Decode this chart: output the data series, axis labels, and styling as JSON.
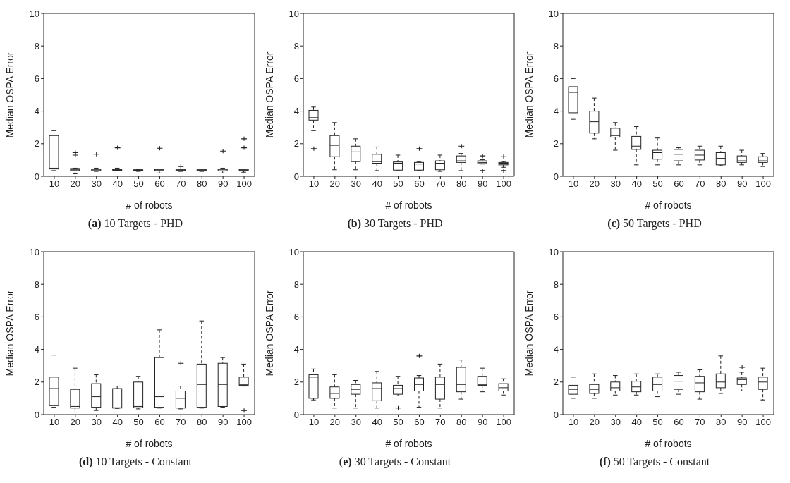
{
  "chart_data": [
    {
      "type": "box",
      "title": "(a) 10 Targets - PHD",
      "xlabel": "# of robots",
      "ylabel": "Median OSPA Error",
      "color": "#222222",
      "line_style": "dashed",
      "marker": "cross",
      "categories": [
        "10",
        "20",
        "30",
        "40",
        "50",
        "60",
        "70",
        "80",
        "90",
        "100"
      ],
      "ylim": [
        0,
        10
      ],
      "yticks": [
        0,
        2,
        4,
        6,
        8,
        10
      ],
      "boxes": [
        {
          "low": 0.35,
          "q1": 0.45,
          "median": 0.5,
          "q3": 2.5,
          "high": 2.8
        },
        {
          "low": 0.15,
          "q1": 0.35,
          "median": 0.4,
          "q3": 0.48,
          "high": 0.5,
          "outliers": [
            1.3,
            1.45
          ]
        },
        {
          "low": 0.3,
          "q1": 0.35,
          "median": 0.4,
          "q3": 0.45,
          "high": 0.5,
          "outliers": [
            1.35
          ]
        },
        {
          "low": 0.35,
          "q1": 0.37,
          "median": 0.4,
          "q3": 0.43,
          "high": 0.5,
          "outliers": [
            1.75
          ]
        },
        {
          "low": 0.3,
          "q1": 0.35,
          "median": 0.38,
          "q3": 0.4,
          "high": 0.42
        },
        {
          "low": 0.2,
          "q1": 0.33,
          "median": 0.38,
          "q3": 0.42,
          "high": 0.45,
          "outliers": [
            1.72
          ]
        },
        {
          "low": 0.3,
          "q1": 0.35,
          "median": 0.38,
          "q3": 0.42,
          "high": 0.44,
          "outliers": [
            0.6
          ]
        },
        {
          "low": 0.3,
          "q1": 0.35,
          "median": 0.38,
          "q3": 0.42,
          "high": 0.45
        },
        {
          "low": 0.2,
          "q1": 0.33,
          "median": 0.4,
          "q3": 0.45,
          "high": 0.5,
          "outliers": [
            1.55
          ]
        },
        {
          "low": 0.25,
          "q1": 0.35,
          "median": 0.38,
          "q3": 0.42,
          "high": 0.45,
          "outliers": [
            1.75,
            2.3
          ]
        }
      ]
    },
    {
      "type": "box",
      "title": "(b) 30 Targets - PHD",
      "xlabel": "# of robots",
      "ylabel": "Median OSPA Error",
      "color": "#222222",
      "line_style": "dashed",
      "marker": "cross",
      "categories": [
        "10",
        "20",
        "30",
        "40",
        "50",
        "60",
        "70",
        "80",
        "90",
        "100"
      ],
      "ylim": [
        0,
        10
      ],
      "yticks": [
        0,
        2,
        4,
        6,
        8,
        10
      ],
      "boxes": [
        {
          "low": 2.8,
          "q1": 3.45,
          "median": 3.6,
          "q3": 4.05,
          "high": 4.25,
          "outliers": [
            1.7
          ]
        },
        {
          "low": 0.4,
          "q1": 1.2,
          "median": 1.9,
          "q3": 2.5,
          "high": 3.3
        },
        {
          "low": 0.4,
          "q1": 0.9,
          "median": 1.5,
          "q3": 1.85,
          "high": 2.3
        },
        {
          "low": 0.35,
          "q1": 0.8,
          "median": 0.9,
          "q3": 1.35,
          "high": 1.8
        },
        {
          "low": 0.35,
          "q1": 0.38,
          "median": 0.8,
          "q3": 0.88,
          "high": 1.3
        },
        {
          "low": 0.35,
          "q1": 0.38,
          "median": 0.75,
          "q3": 0.85,
          "high": 0.9,
          "outliers": [
            1.7
          ]
        },
        {
          "low": 0.3,
          "q1": 0.4,
          "median": 0.8,
          "q3": 0.95,
          "high": 1.3
        },
        {
          "low": 0.35,
          "q1": 0.85,
          "median": 0.95,
          "q3": 1.25,
          "high": 1.4,
          "outliers": [
            1.85
          ]
        },
        {
          "low": 0.75,
          "q1": 0.78,
          "median": 0.85,
          "q3": 0.95,
          "high": 1.02,
          "outliers": [
            0.35,
            1.25
          ]
        },
        {
          "low": 0.55,
          "q1": 0.7,
          "median": 0.8,
          "q3": 0.85,
          "high": 0.9,
          "outliers": [
            0.35,
            1.2
          ]
        }
      ]
    },
    {
      "type": "box",
      "title": "(c) 50 Targets - PHD",
      "xlabel": "# of robots",
      "ylabel": "Median OSPA Error",
      "color": "#222222",
      "line_style": "dashed",
      "marker": "cross",
      "categories": [
        "10",
        "20",
        "30",
        "40",
        "50",
        "60",
        "70",
        "80",
        "90",
        "100"
      ],
      "ylim": [
        0,
        10
      ],
      "yticks": [
        0,
        2,
        4,
        6,
        8,
        10
      ],
      "boxes": [
        {
          "low": 3.5,
          "q1": 3.9,
          "median": 5.15,
          "q3": 5.5,
          "high": 6.0
        },
        {
          "low": 2.3,
          "q1": 2.65,
          "median": 3.35,
          "q3": 4.0,
          "high": 4.8
        },
        {
          "low": 1.6,
          "q1": 2.4,
          "median": 2.5,
          "q3": 2.95,
          "high": 3.3
        },
        {
          "low": 0.7,
          "q1": 1.65,
          "median": 1.85,
          "q3": 2.45,
          "high": 3.05
        },
        {
          "low": 0.7,
          "q1": 1.05,
          "median": 1.45,
          "q3": 1.6,
          "high": 2.35
        },
        {
          "low": 0.7,
          "q1": 0.95,
          "median": 1.35,
          "q3": 1.65,
          "high": 1.75
        },
        {
          "low": 0.7,
          "q1": 1.0,
          "median": 1.3,
          "q3": 1.6,
          "high": 1.85
        },
        {
          "low": 0.65,
          "q1": 0.7,
          "median": 1.1,
          "q3": 1.45,
          "high": 1.85
        },
        {
          "low": 0.7,
          "q1": 0.85,
          "median": 0.95,
          "q3": 1.25,
          "high": 1.6
        },
        {
          "low": 0.6,
          "q1": 0.85,
          "median": 0.95,
          "q3": 1.2,
          "high": 1.4
        }
      ]
    },
    {
      "type": "box",
      "title": "(d) 10 Targets - Constant",
      "xlabel": "# of robots",
      "ylabel": "Median OSPA Error",
      "color": "#222222",
      "line_style": "dashed",
      "marker": "cross",
      "categories": [
        "10",
        "20",
        "30",
        "40",
        "50",
        "60",
        "70",
        "80",
        "90",
        "100"
      ],
      "ylim": [
        0,
        10
      ],
      "yticks": [
        0,
        2,
        4,
        6,
        8,
        10
      ],
      "boxes": [
        {
          "low": 0.45,
          "q1": 0.55,
          "median": 1.6,
          "q3": 2.3,
          "high": 3.65
        },
        {
          "low": 0.15,
          "q1": 0.4,
          "median": 0.5,
          "q3": 1.55,
          "high": 2.85
        },
        {
          "low": 0.25,
          "q1": 0.45,
          "median": 1.1,
          "q3": 1.9,
          "high": 2.45
        },
        {
          "low": 0.38,
          "q1": 0.4,
          "median": 0.42,
          "q3": 1.6,
          "high": 1.75
        },
        {
          "low": 0.35,
          "q1": 0.42,
          "median": 0.5,
          "q3": 2.0,
          "high": 2.35
        },
        {
          "low": 0.4,
          "q1": 0.45,
          "median": 1.1,
          "q3": 3.5,
          "high": 5.2
        },
        {
          "low": 0.35,
          "q1": 0.4,
          "median": 1.0,
          "q3": 1.45,
          "high": 1.75,
          "outliers": [
            3.15
          ]
        },
        {
          "low": 0.4,
          "q1": 0.45,
          "median": 1.85,
          "q3": 3.1,
          "high": 5.75
        },
        {
          "low": 0.45,
          "q1": 0.5,
          "median": 1.85,
          "q3": 3.15,
          "high": 3.5
        },
        {
          "low": 1.75,
          "q1": 1.8,
          "median": 1.85,
          "q3": 2.3,
          "high": 3.1,
          "outliers": [
            0.25
          ]
        }
      ]
    },
    {
      "type": "box",
      "title": "(e) 30 Targets - Constant",
      "xlabel": "# of robots",
      "ylabel": "Median OSPA Error",
      "color": "#222222",
      "line_style": "dashed",
      "marker": "cross",
      "categories": [
        "10",
        "20",
        "30",
        "40",
        "50",
        "60",
        "70",
        "80",
        "90",
        "100"
      ],
      "ylim": [
        0,
        10
      ],
      "yticks": [
        0,
        2,
        4,
        6,
        8,
        10
      ],
      "boxes": [
        {
          "low": 0.9,
          "q1": 1.0,
          "median": 2.3,
          "q3": 2.45,
          "high": 2.8
        },
        {
          "low": 0.4,
          "q1": 1.0,
          "median": 1.3,
          "q3": 1.7,
          "high": 2.45
        },
        {
          "low": 0.4,
          "q1": 1.25,
          "median": 1.55,
          "q3": 1.85,
          "high": 2.1
        },
        {
          "low": 0.4,
          "q1": 0.85,
          "median": 1.6,
          "q3": 1.95,
          "high": 2.65
        },
        {
          "low": 1.15,
          "q1": 1.25,
          "median": 1.6,
          "q3": 1.8,
          "high": 2.35,
          "outliers": [
            0.4
          ]
        },
        {
          "low": 0.45,
          "q1": 1.45,
          "median": 1.85,
          "q3": 2.25,
          "high": 2.4,
          "outliers": [
            3.6
          ]
        },
        {
          "low": 0.4,
          "q1": 0.95,
          "median": 1.85,
          "q3": 2.3,
          "high": 3.1
        },
        {
          "low": 0.95,
          "q1": 1.4,
          "median": 1.85,
          "q3": 2.9,
          "high": 3.35
        },
        {
          "low": 1.4,
          "q1": 1.8,
          "median": 1.85,
          "q3": 2.35,
          "high": 2.85
        },
        {
          "low": 1.2,
          "q1": 1.45,
          "median": 1.65,
          "q3": 1.9,
          "high": 2.2
        }
      ]
    },
    {
      "type": "box",
      "title": "(f) 50 Targets - Constant",
      "xlabel": "# of robots",
      "ylabel": "Median OSPA Error",
      "color": "#222222",
      "line_style": "dashed",
      "marker": "cross",
      "categories": [
        "10",
        "20",
        "30",
        "40",
        "50",
        "60",
        "70",
        "80",
        "90",
        "100"
      ],
      "ylim": [
        0,
        10
      ],
      "yticks": [
        0,
        2,
        4,
        6,
        8,
        10
      ],
      "boxes": [
        {
          "low": 1.0,
          "q1": 1.25,
          "median": 1.55,
          "q3": 1.8,
          "high": 2.3
        },
        {
          "low": 1.0,
          "q1": 1.3,
          "median": 1.55,
          "q3": 1.85,
          "high": 2.5
        },
        {
          "low": 1.2,
          "q1": 1.45,
          "median": 1.65,
          "q3": 2.0,
          "high": 2.4
        },
        {
          "low": 1.2,
          "q1": 1.4,
          "median": 1.7,
          "q3": 2.05,
          "high": 2.5
        },
        {
          "low": 1.1,
          "q1": 1.45,
          "median": 1.85,
          "q3": 2.3,
          "high": 2.5
        },
        {
          "low": 1.25,
          "q1": 1.55,
          "median": 2.05,
          "q3": 2.4,
          "high": 2.6
        },
        {
          "low": 0.95,
          "q1": 1.4,
          "median": 1.95,
          "q3": 2.35,
          "high": 2.75
        },
        {
          "low": 1.3,
          "q1": 1.65,
          "median": 2.0,
          "q3": 2.5,
          "high": 3.6
        },
        {
          "low": 1.45,
          "q1": 1.85,
          "median": 2.15,
          "q3": 2.25,
          "high": 2.6,
          "outliers": [
            2.9
          ]
        },
        {
          "low": 0.9,
          "q1": 1.55,
          "median": 2.0,
          "q3": 2.3,
          "high": 2.85
        }
      ]
    }
  ]
}
